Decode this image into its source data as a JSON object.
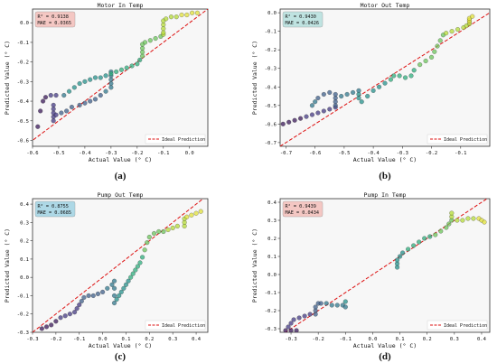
{
  "chart_data": [
    {
      "type": "scatter",
      "panel_label": "(a)",
      "title": "Motor In Temp",
      "xlabel": "Actual Value (° C)",
      "ylabel": "Predicted Value (° C)",
      "xlim": [
        -0.6,
        0.07
      ],
      "ylim": [
        -0.63,
        0.07
      ],
      "xticks": [
        -0.6,
        -0.5,
        -0.4,
        -0.3,
        -0.2,
        -0.1,
        0.0
      ],
      "xtick_labels": [
        "-0.6",
        "-0.5",
        "-0.4",
        "-0.3",
        "-0.2",
        "-0.1",
        "0.0"
      ],
      "yticks": [
        -0.6,
        -0.5,
        -0.4,
        -0.3,
        -0.2,
        -0.1,
        0.0
      ],
      "ytick_labels": [
        "-0.6",
        "-0.5",
        "-0.4",
        "-0.3",
        "-0.2",
        "-0.1",
        "0.0"
      ],
      "metrics": {
        "r2": "R² = 0.9138",
        "mae": "MAE = 0.0365",
        "box_color": "#f4c7c3"
      },
      "legend": {
        "label": "Ideal Prediction",
        "position": "lower-right"
      },
      "ideal_line_color": "#dd1111",
      "grid": false,
      "points": [
        [
          -0.58,
          -0.53
        ],
        [
          -0.57,
          -0.45
        ],
        [
          -0.56,
          -0.4
        ],
        [
          -0.55,
          -0.38
        ],
        [
          -0.53,
          -0.37
        ],
        [
          -0.51,
          -0.37
        ],
        [
          -0.52,
          -0.5
        ],
        [
          -0.52,
          -0.48
        ],
        [
          -0.52,
          -0.46
        ],
        [
          -0.52,
          -0.44
        ],
        [
          -0.52,
          -0.42
        ],
        [
          -0.51,
          -0.47
        ],
        [
          -0.49,
          -0.46
        ],
        [
          -0.47,
          -0.45
        ],
        [
          -0.45,
          -0.43
        ],
        [
          -0.42,
          -0.42
        ],
        [
          -0.4,
          -0.41
        ],
        [
          -0.38,
          -0.4
        ],
        [
          -0.36,
          -0.39
        ],
        [
          -0.34,
          -0.37
        ],
        [
          -0.32,
          -0.35
        ],
        [
          -0.3,
          -0.33
        ],
        [
          -0.3,
          -0.31
        ],
        [
          -0.3,
          -0.29
        ],
        [
          -0.3,
          -0.27
        ],
        [
          -0.3,
          -0.25
        ],
        [
          -0.48,
          -0.37
        ],
        [
          -0.46,
          -0.35
        ],
        [
          -0.44,
          -0.33
        ],
        [
          -0.42,
          -0.31
        ],
        [
          -0.4,
          -0.3
        ],
        [
          -0.38,
          -0.29
        ],
        [
          -0.36,
          -0.28
        ],
        [
          -0.34,
          -0.28
        ],
        [
          -0.32,
          -0.27
        ],
        [
          -0.3,
          -0.26
        ],
        [
          -0.28,
          -0.25
        ],
        [
          -0.26,
          -0.24
        ],
        [
          -0.24,
          -0.23
        ],
        [
          -0.22,
          -0.22
        ],
        [
          -0.2,
          -0.21
        ],
        [
          -0.19,
          -0.19
        ],
        [
          -0.18,
          -0.17
        ],
        [
          -0.18,
          -0.15
        ],
        [
          -0.18,
          -0.13
        ],
        [
          -0.18,
          -0.11
        ],
        [
          -0.17,
          -0.1
        ],
        [
          -0.15,
          -0.09
        ],
        [
          -0.13,
          -0.08
        ],
        [
          -0.11,
          -0.07
        ],
        [
          -0.1,
          -0.06
        ],
        [
          -0.1,
          -0.05
        ],
        [
          -0.1,
          -0.03
        ],
        [
          -0.1,
          -0.01
        ],
        [
          -0.1,
          0.01
        ],
        [
          -0.09,
          0.02
        ],
        [
          -0.07,
          0.03
        ],
        [
          -0.05,
          0.03
        ],
        [
          -0.03,
          0.04
        ],
        [
          -0.01,
          0.04
        ],
        [
          0.01,
          0.05
        ],
        [
          0.03,
          0.05
        ]
      ]
    },
    {
      "type": "scatter",
      "panel_label": "(b)",
      "title": "Motor Out Temp",
      "xlabel": "Actual Value (° C)",
      "ylabel": "Predicted Value (° C)",
      "xlim": [
        -0.72,
        0.0
      ],
      "ylim": [
        -0.72,
        0.02
      ],
      "xticks": [
        -0.7,
        -0.6,
        -0.5,
        -0.4,
        -0.3,
        -0.2,
        -0.1
      ],
      "xtick_labels": [
        "-0.7",
        "-0.6",
        "-0.5",
        "-0.4",
        "-0.3",
        "-0.2",
        "-0.1"
      ],
      "yticks": [
        -0.7,
        -0.6,
        -0.5,
        -0.4,
        -0.3,
        -0.2,
        -0.1,
        0.0
      ],
      "ytick_labels": [
        "-0.7",
        "-0.6",
        "-0.5",
        "-0.4",
        "-0.3",
        "-0.2",
        "-0.1",
        "0.0"
      ],
      "metrics": {
        "r2": "R² = 0.9430",
        "mae": "MAE = 0.0426",
        "box_color": "#bfe3e1"
      },
      "legend": {
        "label": "Ideal Prediction",
        "position": "lower-right"
      },
      "ideal_line_color": "#dd1111",
      "grid": false,
      "points": [
        [
          -0.71,
          -0.6
        ],
        [
          -0.69,
          -0.59
        ],
        [
          -0.67,
          -0.58
        ],
        [
          -0.65,
          -0.57
        ],
        [
          -0.63,
          -0.56
        ],
        [
          -0.61,
          -0.55
        ],
        [
          -0.59,
          -0.54
        ],
        [
          -0.57,
          -0.53
        ],
        [
          -0.55,
          -0.52
        ],
        [
          -0.53,
          -0.51
        ],
        [
          -0.53,
          -0.5
        ],
        [
          -0.53,
          -0.48
        ],
        [
          -0.53,
          -0.46
        ],
        [
          -0.53,
          -0.44
        ],
        [
          -0.55,
          -0.43
        ],
        [
          -0.57,
          -0.44
        ],
        [
          -0.59,
          -0.46
        ],
        [
          -0.6,
          -0.48
        ],
        [
          -0.61,
          -0.5
        ],
        [
          -0.51,
          -0.45
        ],
        [
          -0.49,
          -0.44
        ],
        [
          -0.47,
          -0.43
        ],
        [
          -0.45,
          -0.42
        ],
        [
          -0.45,
          -0.44
        ],
        [
          -0.45,
          -0.46
        ],
        [
          -0.44,
          -0.48
        ],
        [
          -0.42,
          -0.45
        ],
        [
          -0.4,
          -0.42
        ],
        [
          -0.38,
          -0.4
        ],
        [
          -0.36,
          -0.38
        ],
        [
          -0.34,
          -0.36
        ],
        [
          -0.33,
          -0.34
        ],
        [
          -0.31,
          -0.34
        ],
        [
          -0.29,
          -0.35
        ],
        [
          -0.27,
          -0.34
        ],
        [
          -0.26,
          -0.31
        ],
        [
          -0.24,
          -0.28
        ],
        [
          -0.22,
          -0.26
        ],
        [
          -0.2,
          -0.24
        ],
        [
          -0.19,
          -0.21
        ],
        [
          -0.18,
          -0.18
        ],
        [
          -0.17,
          -0.15
        ],
        [
          -0.16,
          -0.12
        ],
        [
          -0.15,
          -0.11
        ],
        [
          -0.13,
          -0.1
        ],
        [
          -0.11,
          -0.09
        ],
        [
          -0.09,
          -0.08
        ],
        [
          -0.08,
          -0.07
        ],
        [
          -0.07,
          -0.06
        ],
        [
          -0.07,
          -0.05
        ],
        [
          -0.07,
          -0.04
        ],
        [
          -0.07,
          -0.03
        ],
        [
          -0.06,
          -0.02
        ]
      ]
    },
    {
      "type": "scatter",
      "panel_label": "(c)",
      "title": "Pump Out Temp",
      "xlabel": "Actual Value (° C)",
      "ylabel": "Predicted Value (° C)",
      "xlim": [
        -0.3,
        0.45
      ],
      "ylim": [
        -0.3,
        0.43
      ],
      "xticks": [
        -0.3,
        -0.2,
        -0.1,
        0.0,
        0.1,
        0.2,
        0.3,
        0.4
      ],
      "xtick_labels": [
        "-0.3",
        "-0.2",
        "-0.1",
        "0.0",
        "0.1",
        "0.2",
        "0.3",
        "0.4"
      ],
      "yticks": [
        -0.3,
        -0.2,
        -0.1,
        0.0,
        0.1,
        0.2,
        0.3,
        0.4
      ],
      "ytick_labels": [
        "-0.3",
        "-0.2",
        "-0.1",
        "0.0",
        "0.1",
        "0.2",
        "0.3",
        "0.4"
      ],
      "metrics": {
        "r2": "R² = 0.8755",
        "mae": "MAE = 0.0685",
        "box_color": "#add8e6"
      },
      "legend": {
        "label": "Ideal Prediction",
        "position": "lower-right"
      },
      "ideal_line_color": "#dd1111",
      "grid": false,
      "points": [
        [
          -0.26,
          -0.28
        ],
        [
          -0.24,
          -0.27
        ],
        [
          -0.22,
          -0.26
        ],
        [
          -0.2,
          -0.24
        ],
        [
          -0.18,
          -0.22
        ],
        [
          -0.16,
          -0.21
        ],
        [
          -0.14,
          -0.2
        ],
        [
          -0.12,
          -0.19
        ],
        [
          -0.11,
          -0.17
        ],
        [
          -0.1,
          -0.15
        ],
        [
          -0.09,
          -0.13
        ],
        [
          -0.08,
          -0.11
        ],
        [
          -0.06,
          -0.1
        ],
        [
          -0.04,
          -0.1
        ],
        [
          -0.02,
          -0.09
        ],
        [
          0.0,
          -0.08
        ],
        [
          0.02,
          -0.06
        ],
        [
          0.04,
          -0.04
        ],
        [
          0.05,
          -0.02
        ],
        [
          0.05,
          -0.06
        ],
        [
          0.05,
          -0.1
        ],
        [
          0.05,
          -0.14
        ],
        [
          0.06,
          -0.12
        ],
        [
          0.07,
          -0.1
        ],
        [
          0.08,
          -0.08
        ],
        [
          0.09,
          -0.06
        ],
        [
          0.1,
          -0.04
        ],
        [
          0.11,
          -0.02
        ],
        [
          0.12,
          0.0
        ],
        [
          0.13,
          0.02
        ],
        [
          0.14,
          0.04
        ],
        [
          0.15,
          0.06
        ],
        [
          0.16,
          0.08
        ],
        [
          0.17,
          0.11
        ],
        [
          0.18,
          0.15
        ],
        [
          0.19,
          0.19
        ],
        [
          0.2,
          0.22
        ],
        [
          0.22,
          0.24
        ],
        [
          0.24,
          0.25
        ],
        [
          0.26,
          0.25
        ],
        [
          0.28,
          0.26
        ],
        [
          0.3,
          0.27
        ],
        [
          0.32,
          0.28
        ],
        [
          0.35,
          0.28
        ],
        [
          0.35,
          0.3
        ],
        [
          0.35,
          0.32
        ],
        [
          0.36,
          0.33
        ],
        [
          0.38,
          0.34
        ],
        [
          0.4,
          0.35
        ],
        [
          0.42,
          0.36
        ]
      ]
    },
    {
      "type": "scatter",
      "panel_label": "(d)",
      "title": "Pump In Temp",
      "xlabel": "Actual Value (° C)",
      "ylabel": "Predicted Value (° C)",
      "xlim": [
        -0.34,
        0.43
      ],
      "ylim": [
        -0.32,
        0.42
      ],
      "xticks": [
        -0.3,
        -0.2,
        -0.1,
        0.0,
        0.1,
        0.2,
        0.3,
        0.4
      ],
      "xtick_labels": [
        "-0.3",
        "-0.2",
        "-0.1",
        "0.0",
        "0.1",
        "0.2",
        "0.3",
        "0.4"
      ],
      "yticks": [
        -0.3,
        -0.2,
        -0.1,
        0.0,
        0.1,
        0.2,
        0.3,
        0.4
      ],
      "ytick_labels": [
        "-0.3",
        "-0.2",
        "-0.1",
        "0.0",
        "0.1",
        "0.2",
        "0.3",
        "0.4"
      ],
      "metrics": {
        "r2": "R² = 0.9439",
        "mae": "MAE = 0.0434",
        "box_color": "#f4c7c3"
      },
      "legend": {
        "label": "Ideal Prediction",
        "position": "lower-right"
      },
      "ideal_line_color": "#dd1111",
      "grid": false,
      "points": [
        [
          -0.32,
          -0.31
        ],
        [
          -0.3,
          -0.31
        ],
        [
          -0.28,
          -0.31
        ],
        [
          -0.31,
          -0.29
        ],
        [
          -0.3,
          -0.27
        ],
        [
          -0.29,
          -0.25
        ],
        [
          -0.27,
          -0.24
        ],
        [
          -0.25,
          -0.23
        ],
        [
          -0.23,
          -0.22
        ],
        [
          -0.21,
          -0.22
        ],
        [
          -0.21,
          -0.2
        ],
        [
          -0.21,
          -0.18
        ],
        [
          -0.2,
          -0.16
        ],
        [
          -0.19,
          -0.16
        ],
        [
          -0.17,
          -0.16
        ],
        [
          -0.15,
          -0.17
        ],
        [
          -0.13,
          -0.17
        ],
        [
          -0.11,
          -0.17
        ],
        [
          -0.1,
          -0.18
        ],
        [
          -0.1,
          -0.15
        ],
        [
          0.09,
          0.04
        ],
        [
          0.09,
          0.06
        ],
        [
          0.09,
          0.08
        ],
        [
          0.1,
          0.1
        ],
        [
          0.11,
          0.12
        ],
        [
          0.13,
          0.14
        ],
        [
          0.15,
          0.16
        ],
        [
          0.17,
          0.18
        ],
        [
          0.19,
          0.2
        ],
        [
          0.21,
          0.21
        ],
        [
          0.23,
          0.22
        ],
        [
          0.25,
          0.24
        ],
        [
          0.27,
          0.26
        ],
        [
          0.28,
          0.28
        ],
        [
          0.29,
          0.3
        ],
        [
          0.29,
          0.32
        ],
        [
          0.29,
          0.34
        ],
        [
          0.31,
          0.3
        ],
        [
          0.33,
          0.3
        ],
        [
          0.35,
          0.31
        ],
        [
          0.37,
          0.31
        ],
        [
          0.39,
          0.31
        ],
        [
          0.4,
          0.3
        ],
        [
          0.41,
          0.29
        ]
      ]
    }
  ]
}
